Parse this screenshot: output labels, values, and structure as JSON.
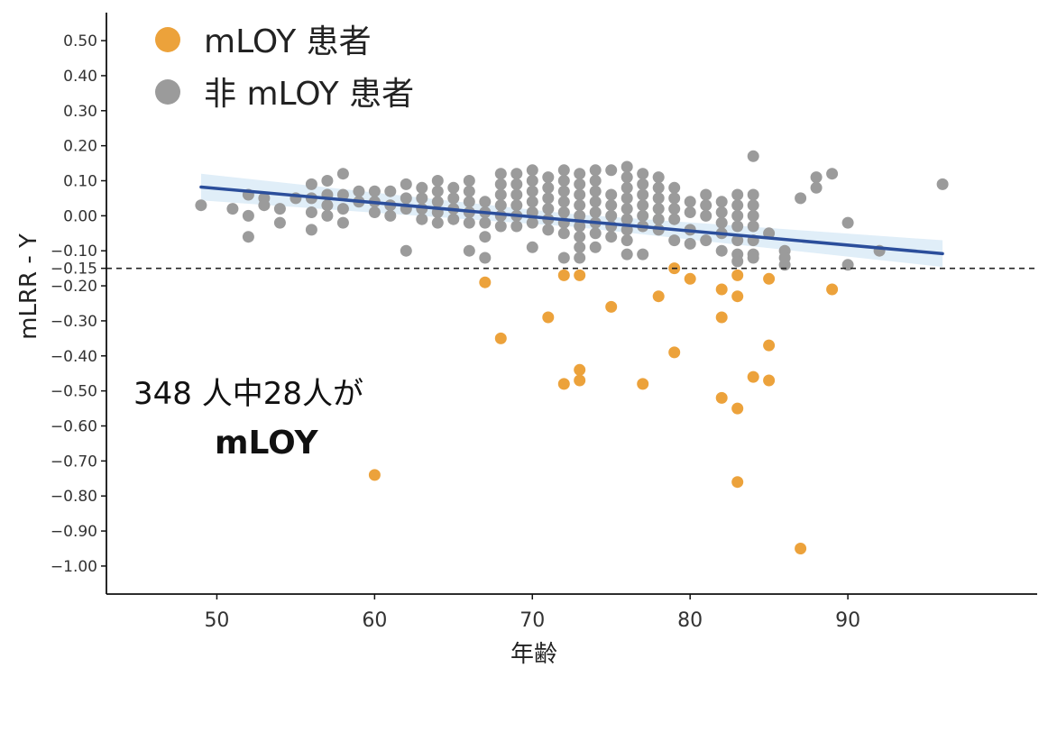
{
  "chart_data": {
    "type": "scatter",
    "xlabel": "年齢",
    "ylabel": "mLRR - Y",
    "xlim": [
      43,
      102
    ],
    "ylim": [
      -1.08,
      0.58
    ],
    "x_ticks": [
      50,
      60,
      70,
      80,
      90
    ],
    "y_ticks": [
      0.5,
      0.4,
      0.3,
      0.2,
      0.1,
      0.0,
      -0.1,
      -0.15,
      -0.2,
      -0.3,
      -0.4,
      -0.5,
      -0.6,
      -0.7,
      -0.8,
      -0.9,
      -1.0
    ],
    "y_tick_labels": [
      "0.50",
      "0.40",
      "0.30",
      "0.20",
      "0.10",
      "0.00",
      "−0.10",
      "−0.15",
      "−0.20",
      "−0.30",
      "−0.40",
      "−0.50",
      "−0.60",
      "−0.70",
      "−0.80",
      "−0.90",
      "−1.00"
    ],
    "threshold": -0.15,
    "grid": false,
    "legend_position": "top-left",
    "legend": [
      {
        "label": "mLOY 患者",
        "color": "#ECA23B"
      },
      {
        "label": "非 mLOY 患者",
        "color": "#9B9B9B"
      }
    ],
    "trend": {
      "x": [
        49,
        96
      ],
      "y": [
        0.082,
        -0.108
      ],
      "color": "#2B4E9B",
      "band_color": "#D6E8F5"
    },
    "series": [
      {
        "name": "mLOY 患者",
        "color": "#ECA23B",
        "points": [
          [
            60,
            -0.74
          ],
          [
            67,
            -0.19
          ],
          [
            68,
            -0.35
          ],
          [
            71,
            -0.29
          ],
          [
            72,
            -0.17
          ],
          [
            72,
            -0.48
          ],
          [
            73,
            -0.17
          ],
          [
            73,
            -0.44
          ],
          [
            73,
            -0.47
          ],
          [
            75,
            -0.26
          ],
          [
            77,
            -0.48
          ],
          [
            78,
            -0.23
          ],
          [
            79,
            -0.15
          ],
          [
            79,
            -0.39
          ],
          [
            80,
            -0.18
          ],
          [
            82,
            -0.21
          ],
          [
            82,
            -0.29
          ],
          [
            82,
            -0.52
          ],
          [
            83,
            -0.17
          ],
          [
            83,
            -0.23
          ],
          [
            83,
            -0.55
          ],
          [
            83,
            -0.76
          ],
          [
            84,
            -0.46
          ],
          [
            85,
            -0.18
          ],
          [
            85,
            -0.37
          ],
          [
            85,
            -0.47
          ],
          [
            87,
            -0.95
          ],
          [
            89,
            -0.21
          ]
        ]
      },
      {
        "name": "非 mLOY 患者",
        "color": "#9B9B9B",
        "points": [
          [
            49,
            0.03
          ],
          [
            51,
            0.02
          ],
          [
            52,
            0.06
          ],
          [
            52,
            0.0
          ],
          [
            52,
            -0.06
          ],
          [
            53,
            0.05
          ],
          [
            53,
            0.03
          ],
          [
            54,
            0.02
          ],
          [
            54,
            -0.02
          ],
          [
            55,
            0.05
          ],
          [
            56,
            0.09
          ],
          [
            56,
            0.05
          ],
          [
            56,
            0.01
          ],
          [
            56,
            -0.04
          ],
          [
            57,
            0.1
          ],
          [
            57,
            0.06
          ],
          [
            57,
            0.03
          ],
          [
            57,
            0.0
          ],
          [
            58,
            0.12
          ],
          [
            58,
            0.06
          ],
          [
            58,
            0.02
          ],
          [
            58,
            -0.02
          ],
          [
            59,
            0.07
          ],
          [
            59,
            0.04
          ],
          [
            60,
            0.07
          ],
          [
            60,
            0.04
          ],
          [
            60,
            0.01
          ],
          [
            61,
            0.07
          ],
          [
            61,
            0.03
          ],
          [
            61,
            0.0
          ],
          [
            62,
            0.09
          ],
          [
            62,
            0.05
          ],
          [
            62,
            0.02
          ],
          [
            62,
            -0.1
          ],
          [
            63,
            0.08
          ],
          [
            63,
            0.05
          ],
          [
            63,
            0.02
          ],
          [
            63,
            -0.01
          ],
          [
            64,
            0.1
          ],
          [
            64,
            0.07
          ],
          [
            64,
            0.04
          ],
          [
            64,
            0.01
          ],
          [
            64,
            -0.02
          ],
          [
            65,
            0.08
          ],
          [
            65,
            0.05
          ],
          [
            65,
            0.02
          ],
          [
            65,
            -0.01
          ],
          [
            66,
            0.1
          ],
          [
            66,
            0.07
          ],
          [
            66,
            0.04
          ],
          [
            66,
            0.01
          ],
          [
            66,
            -0.02
          ],
          [
            66,
            -0.1
          ],
          [
            67,
            0.04
          ],
          [
            67,
            0.01
          ],
          [
            67,
            -0.02
          ],
          [
            67,
            -0.06
          ],
          [
            67,
            -0.12
          ],
          [
            68,
            0.12
          ],
          [
            68,
            0.09
          ],
          [
            68,
            0.06
          ],
          [
            68,
            0.03
          ],
          [
            68,
            0.0
          ],
          [
            68,
            -0.03
          ],
          [
            69,
            0.12
          ],
          [
            69,
            0.09
          ],
          [
            69,
            0.06
          ],
          [
            69,
            0.03
          ],
          [
            69,
            0.0
          ],
          [
            69,
            -0.03
          ],
          [
            70,
            0.13
          ],
          [
            70,
            0.1
          ],
          [
            70,
            0.07
          ],
          [
            70,
            0.04
          ],
          [
            70,
            0.01
          ],
          [
            70,
            -0.02
          ],
          [
            70,
            -0.09
          ],
          [
            71,
            0.11
          ],
          [
            71,
            0.08
          ],
          [
            71,
            0.05
          ],
          [
            71,
            0.02
          ],
          [
            71,
            -0.01
          ],
          [
            71,
            -0.04
          ],
          [
            72,
            0.13
          ],
          [
            72,
            0.1
          ],
          [
            72,
            0.07
          ],
          [
            72,
            0.04
          ],
          [
            72,
            0.01
          ],
          [
            72,
            -0.02
          ],
          [
            72,
            -0.05
          ],
          [
            72,
            -0.12
          ],
          [
            73,
            0.12
          ],
          [
            73,
            0.09
          ],
          [
            73,
            0.06
          ],
          [
            73,
            0.03
          ],
          [
            73,
            0.0
          ],
          [
            73,
            -0.03
          ],
          [
            73,
            -0.06
          ],
          [
            73,
            -0.09
          ],
          [
            73,
            -0.12
          ],
          [
            74,
            0.13
          ],
          [
            74,
            0.1
          ],
          [
            74,
            0.07
          ],
          [
            74,
            0.04
          ],
          [
            74,
            0.01
          ],
          [
            74,
            -0.02
          ],
          [
            74,
            -0.05
          ],
          [
            74,
            -0.09
          ],
          [
            75,
            0.13
          ],
          [
            75,
            0.06
          ],
          [
            75,
            0.03
          ],
          [
            75,
            0.0
          ],
          [
            75,
            -0.03
          ],
          [
            75,
            -0.06
          ],
          [
            76,
            0.14
          ],
          [
            76,
            0.11
          ],
          [
            76,
            0.08
          ],
          [
            76,
            0.05
          ],
          [
            76,
            0.02
          ],
          [
            76,
            -0.01
          ],
          [
            76,
            -0.04
          ],
          [
            76,
            -0.07
          ],
          [
            76,
            -0.11
          ],
          [
            77,
            0.12
          ],
          [
            77,
            0.09
          ],
          [
            77,
            0.06
          ],
          [
            77,
            0.03
          ],
          [
            77,
            0.0
          ],
          [
            77,
            -0.03
          ],
          [
            77,
            -0.11
          ],
          [
            78,
            0.11
          ],
          [
            78,
            0.08
          ],
          [
            78,
            0.05
          ],
          [
            78,
            0.02
          ],
          [
            78,
            -0.01
          ],
          [
            78,
            -0.04
          ],
          [
            79,
            0.08
          ],
          [
            79,
            0.05
          ],
          [
            79,
            0.02
          ],
          [
            79,
            -0.01
          ],
          [
            79,
            -0.07
          ],
          [
            80,
            0.04
          ],
          [
            80,
            0.01
          ],
          [
            80,
            -0.04
          ],
          [
            80,
            -0.08
          ],
          [
            81,
            0.06
          ],
          [
            81,
            0.03
          ],
          [
            81,
            0.0
          ],
          [
            81,
            -0.07
          ],
          [
            82,
            0.04
          ],
          [
            82,
            0.01
          ],
          [
            82,
            -0.02
          ],
          [
            82,
            -0.05
          ],
          [
            82,
            -0.1
          ],
          [
            83,
            0.06
          ],
          [
            83,
            0.03
          ],
          [
            83,
            0.0
          ],
          [
            83,
            -0.03
          ],
          [
            83,
            -0.07
          ],
          [
            83,
            -0.11
          ],
          [
            83,
            -0.13
          ],
          [
            84,
            0.17
          ],
          [
            84,
            0.06
          ],
          [
            84,
            0.03
          ],
          [
            84,
            0.0
          ],
          [
            84,
            -0.03
          ],
          [
            84,
            -0.07
          ],
          [
            84,
            -0.11
          ],
          [
            84,
            -0.12
          ],
          [
            85,
            -0.05
          ],
          [
            86,
            -0.1
          ],
          [
            86,
            -0.12
          ],
          [
            86,
            -0.14
          ],
          [
            87,
            0.05
          ],
          [
            88,
            0.11
          ],
          [
            88,
            0.08
          ],
          [
            89,
            0.12
          ],
          [
            90,
            -0.02
          ],
          [
            90,
            -0.14
          ],
          [
            92,
            -0.1
          ],
          [
            96,
            0.09
          ]
        ]
      }
    ]
  },
  "annotation": {
    "line1": "348 人中28人が",
    "line2": "mLOY"
  }
}
